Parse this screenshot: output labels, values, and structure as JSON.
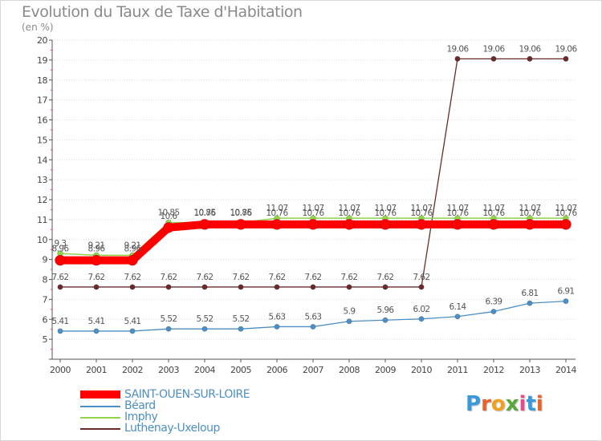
{
  "title": "Evolution du Taux de Taxe d'Habitation",
  "unit": "(en %)",
  "chart_data": {
    "type": "line",
    "title": "Evolution du Taux de Taxe d'Habitation",
    "ylabel": "(en %)",
    "xlabel": "",
    "ylim": [
      4,
      20
    ],
    "yticks": [
      5,
      6,
      7,
      8,
      9,
      10,
      11,
      12,
      13,
      14,
      15,
      16,
      17,
      18,
      19,
      20
    ],
    "x": [
      "2000",
      "2001",
      "2002",
      "2003",
      "2004",
      "2005",
      "2006",
      "2007",
      "2008",
      "2009",
      "2010",
      "2011",
      "2012",
      "2013",
      "2014"
    ],
    "series": [
      {
        "name": "Luthenay-Uxeloup",
        "color": "#6b2a2a",
        "values": [
          7.62,
          7.62,
          7.62,
          7.62,
          7.62,
          7.62,
          7.62,
          7.62,
          7.62,
          7.62,
          7.62,
          19.06,
          19.06,
          19.06,
          19.06
        ],
        "labels": [
          "7.62",
          "7.62",
          "7.62",
          "7.62",
          "7.62",
          "7.62",
          "7.62",
          "7.62",
          "7.62",
          "7.62",
          "7.62",
          "19.06",
          "19.06",
          "19.06",
          "19.06"
        ]
      },
      {
        "name": "Béard",
        "color": "#4d8fc4",
        "values": [
          5.41,
          5.41,
          5.41,
          5.52,
          5.52,
          5.52,
          5.63,
          5.63,
          5.9,
          5.96,
          6.02,
          6.14,
          6.39,
          6.81,
          6.91
        ],
        "labels": [
          "5.41",
          "5.41",
          "5.41",
          "5.52",
          "5.52",
          "5.52",
          "5.63",
          "5.63",
          "5.9",
          "5.96",
          "6.02",
          "6.14",
          "6.39",
          "6.81",
          "6.91"
        ]
      },
      {
        "name": "Imphy",
        "color": "#8fd44a",
        "values": [
          9.3,
          9.21,
          9.21,
          10.85,
          10.85,
          10.85,
          11.07,
          11.07,
          11.07,
          11.07,
          11.07,
          11.07,
          11.07,
          11.07,
          11.07
        ],
        "labels": [
          "9.3",
          "9.21",
          "9.21",
          "10.85",
          "10.85",
          "10.85",
          "11.07",
          "11.07",
          "11.07",
          "11.07",
          "11.07",
          "11.07",
          "11.07",
          "11.07",
          "11.07"
        ]
      },
      {
        "name": "SAINT-OUEN-SUR-LOIRE",
        "color": "#ff0000",
        "values": [
          8.96,
          8.96,
          8.96,
          10.6,
          10.76,
          10.76,
          10.76,
          10.76,
          10.76,
          10.76,
          10.76,
          10.76,
          10.76,
          10.76,
          10.76
        ],
        "labels": [
          "8.96",
          "8.96",
          "8.96",
          "10.6",
          "10.76",
          "10.76",
          "10.76",
          "10.76",
          "10.76",
          "10.76",
          "10.76",
          "10.76",
          "10.76",
          "10.76",
          "10.76"
        ]
      }
    ],
    "legend": [
      {
        "name": "SAINT-OUEN-SUR-LOIRE",
        "color": "#ff0000"
      },
      {
        "name": "Béard",
        "color": "#4d8fc4"
      },
      {
        "name": "Imphy",
        "color": "#8fd44a"
      },
      {
        "name": "Luthenay-Uxeloup",
        "color": "#6b2a2a"
      }
    ]
  },
  "logo": {
    "text": "Proxiti",
    "colors": [
      "#3a9ad9",
      "#e8622c",
      "#f0a01e",
      "#5aa83a",
      "#e84a8a",
      "#3a9ad9",
      "#e8622c"
    ]
  }
}
